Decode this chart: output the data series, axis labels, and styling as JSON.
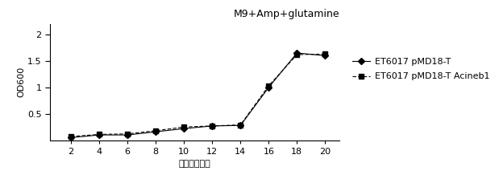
{
  "title": "M9+Amp+glutamine",
  "xlabel": "时间（小时）",
  "ylabel": "OD600",
  "x": [
    2,
    4,
    6,
    8,
    10,
    12,
    14,
    16,
    18,
    20
  ],
  "series1_label": "ET6017 pMD18-T",
  "series1_y": [
    0.05,
    0.1,
    0.1,
    0.16,
    0.22,
    0.27,
    0.28,
    1.0,
    1.65,
    1.6
  ],
  "series1_color": "#000000",
  "series1_marker": "D",
  "series2_label": "ET6017 pMD18-T Acineb1",
  "series2_y": [
    0.07,
    0.11,
    0.12,
    0.18,
    0.25,
    0.27,
    0.29,
    1.03,
    1.62,
    1.63
  ],
  "series2_color": "#000000",
  "series2_marker": "s",
  "ylim": [
    0,
    2.2
  ],
  "yticks": [
    0.5,
    1.0,
    1.5,
    2.0
  ],
  "ytick_labels": [
    "0.5",
    "1",
    "1.5",
    "2"
  ],
  "xticks": [
    2,
    4,
    6,
    8,
    10,
    12,
    14,
    16,
    18,
    20
  ],
  "bg_color": "#ffffff",
  "title_fontsize": 9,
  "axis_fontsize": 8,
  "tick_fontsize": 8,
  "legend_fontsize": 8
}
